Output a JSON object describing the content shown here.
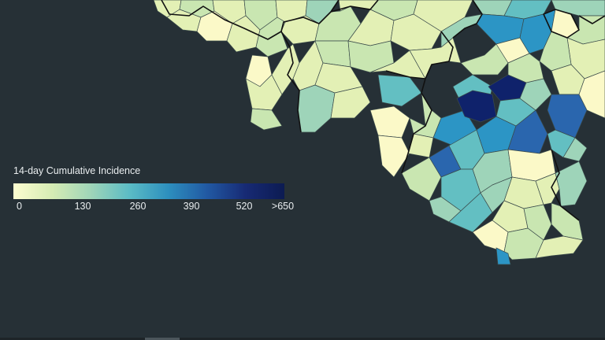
{
  "legend": {
    "title": "14-day Cumulative Incidence",
    "ticks": [
      "0",
      "130",
      "260",
      "390",
      "520",
      ">650"
    ],
    "colors": [
      "#fdfdd0",
      "#d6ecb4",
      "#9fd5b8",
      "#5bbcc5",
      "#2d8fbe",
      "#2159a3",
      "#172a74",
      "#0c1b52"
    ]
  },
  "map": {
    "background": "#263036",
    "palette": {
      "low": "#fbf9c8",
      "low_mid": "#e3f0b5",
      "mid_low": "#c9e6b1",
      "mid": "#9ed4b9",
      "mid_high": "#63bfc2",
      "high": "#2c95c5",
      "very_high": "#2a66ae",
      "max": "#0f226b"
    }
  }
}
